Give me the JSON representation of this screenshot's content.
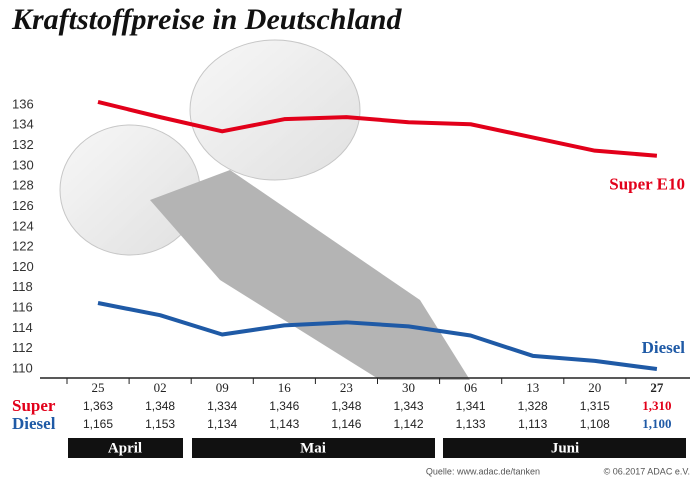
{
  "chart_data": {
    "type": "line",
    "title": "Kraftstoffpreise in Deutschland",
    "categories": [
      "25",
      "02",
      "09",
      "16",
      "23",
      "30",
      "06",
      "13",
      "20",
      "27"
    ],
    "series": [
      {
        "name": "Super E10",
        "color": "#e2001a",
        "values": [
          136.3,
          134.8,
          133.4,
          134.6,
          134.8,
          134.3,
          134.1,
          132.8,
          131.5,
          131.0
        ],
        "value_labels": [
          "1,363",
          "1,348",
          "1,334",
          "1,346",
          "1,348",
          "1,343",
          "1,341",
          "1,328",
          "1,315",
          "1,310"
        ]
      },
      {
        "name": "Diesel",
        "color": "#1f5aa6",
        "values": [
          116.5,
          115.3,
          113.4,
          114.3,
          114.6,
          114.2,
          113.3,
          111.3,
          110.8,
          110.0
        ],
        "value_labels": [
          "1,165",
          "1,153",
          "1,134",
          "1,143",
          "1,146",
          "1,142",
          "1,133",
          "1,113",
          "1,108",
          "1,100"
        ]
      }
    ],
    "row_labels": [
      "Super",
      "Diesel"
    ],
    "months": [
      "April",
      "Mai",
      "Juni"
    ],
    "ylim": [
      109,
      137.5
    ],
    "yticks": [
      110,
      112,
      114,
      116,
      118,
      120,
      122,
      124,
      126,
      128,
      130,
      132,
      134,
      136
    ],
    "grid": false,
    "source": "Quelle: www.adac.de/tanken",
    "copyright": "© 06.2017 ADAC e.V."
  }
}
